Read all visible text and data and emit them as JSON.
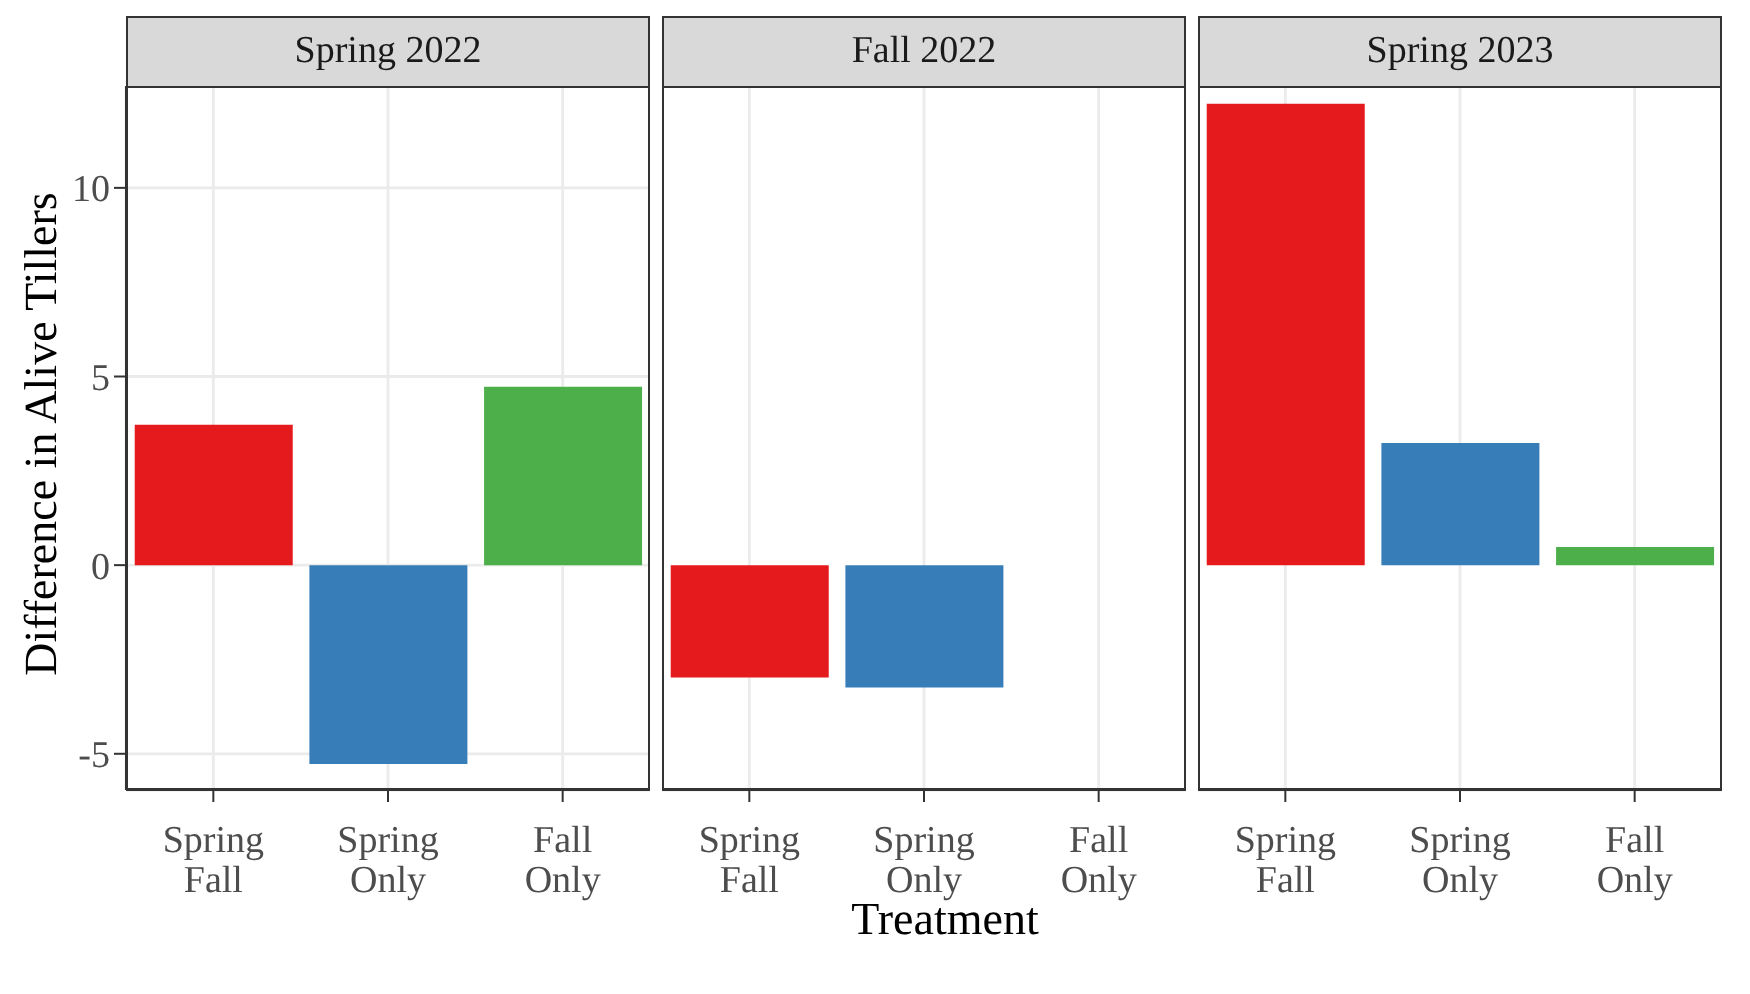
{
  "chart_data": [
    {
      "type": "bar",
      "title": "Spring 2022",
      "ylabel": "Difference in Alive Tillers",
      "categories": [
        "Spring Fall",
        "Spring Only",
        "Fall Only"
      ],
      "values": [
        3.72,
        -5.27,
        4.73
      ],
      "colors": [
        "#e41a1c",
        "#377eb8",
        "#4daf4a"
      ],
      "ylim": [
        -5.96,
        12.7
      ],
      "yticks": [
        -5,
        0,
        5,
        10
      ],
      "grid": true
    },
    {
      "type": "bar",
      "title": "Fall 2022",
      "xlabel": "Treatment",
      "categories": [
        "Spring Fall",
        "Spring Only",
        "Fall Only"
      ],
      "values": [
        -2.98,
        -3.24,
        null
      ],
      "colors": [
        "#e41a1c",
        "#377eb8",
        "#4daf4a"
      ],
      "ylim": [
        -5.96,
        12.7
      ],
      "yticks": [
        -5,
        0,
        5,
        10
      ],
      "grid": true,
      "tick_labels": "x"
    },
    {
      "type": "bar",
      "title": "Spring 2023",
      "categories": [
        "Spring Fall",
        "Spring Only",
        "Fall Only"
      ],
      "values": [
        12.23,
        3.24,
        0.48
      ],
      "colors": [
        "#e41a1c",
        "#377eb8",
        "#4daf4a"
      ],
      "ylim": [
        -5.96,
        12.7
      ],
      "yticks": [
        -5,
        0,
        5,
        10
      ],
      "grid": true,
      "tick_labels": "x"
    }
  ]
}
